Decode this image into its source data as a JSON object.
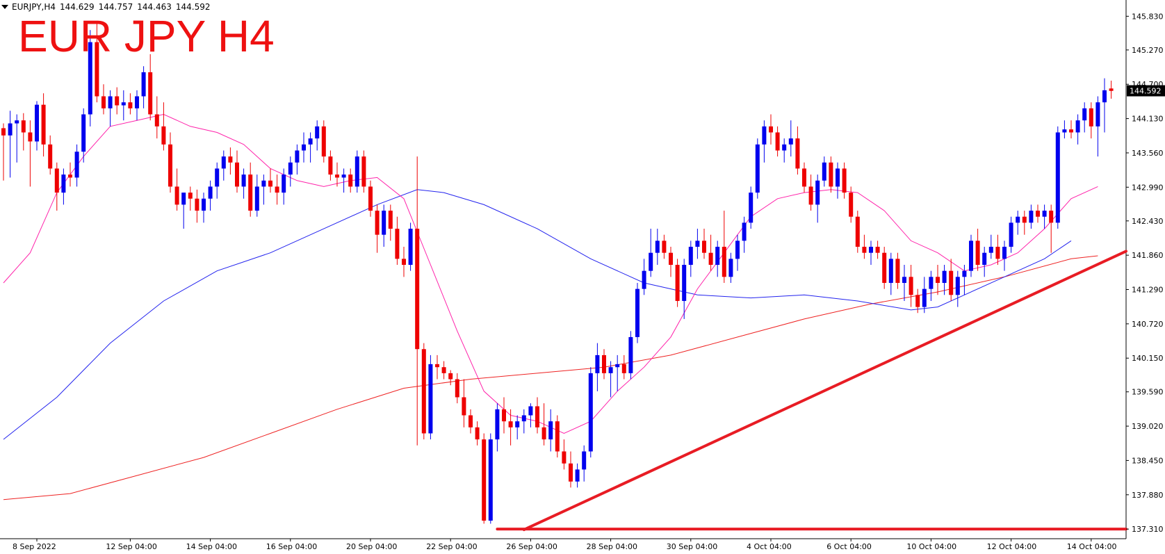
{
  "header": {
    "symbol": "EURJPY,H4",
    "open": "144.629",
    "high": "144.757",
    "low": "144.463",
    "close": "144.592"
  },
  "overlay_title": "EUR JPY H4",
  "colors": {
    "bull": "#0000ee",
    "bear": "#ee0000",
    "ma_fast": "#ff22aa",
    "ma_mid": "#2222ee",
    "ma_slow": "#ee2222",
    "trendline": "#e81c24",
    "price_tag_bg": "#000000",
    "price_tag_text": "#ffffff"
  },
  "chart_data": {
    "type": "candlestick",
    "symbol": "EURJPY",
    "timeframe": "H4",
    "ylim": [
      137.15,
      146.1
    ],
    "y_ticks": [
      145.83,
      145.27,
      144.7,
      144.13,
      143.56,
      142.99,
      142.43,
      141.86,
      141.29,
      140.72,
      140.15,
      139.59,
      139.02,
      138.45,
      137.88,
      137.31
    ],
    "y_tick_labels": [
      "145.830",
      "145.270",
      "144.700",
      "144.130",
      "143.560",
      "142.990",
      "142.430",
      "141.860",
      "141.290",
      "140.720",
      "140.150",
      "139.590",
      "139.020",
      "138.450",
      "137.880",
      "137.310"
    ],
    "x_ticks": [
      {
        "label": "8 Sep 2022",
        "bar": 5
      },
      {
        "label": "12 Sep 04:00",
        "bar": 19
      },
      {
        "label": "14 Sep 04:00",
        "bar": 31
      },
      {
        "label": "16 Sep 04:00",
        "bar": 43
      },
      {
        "label": "20 Sep 04:00",
        "bar": 55
      },
      {
        "label": "22 Sep 04:00",
        "bar": 67
      },
      {
        "label": "26 Sep 04:00",
        "bar": 79
      },
      {
        "label": "28 Sep 04:00",
        "bar": 91
      },
      {
        "label": "30 Sep 04:00",
        "bar": 103
      },
      {
        "label": "4 Oct 04:00",
        "bar": 115
      },
      {
        "label": "6 Oct 04:00",
        "bar": 127
      },
      {
        "label": "10 Oct 04:00",
        "bar": 139
      },
      {
        "label": "12 Oct 04:00",
        "bar": 151
      },
      {
        "label": "14 Oct 04:00",
        "bar": 163
      }
    ],
    "candles": [
      [
        143.97,
        144.05,
        143.1,
        143.85
      ],
      [
        143.85,
        144.26,
        143.15,
        144.05
      ],
      [
        144.05,
        144.2,
        143.4,
        144.1
      ],
      [
        144.1,
        144.22,
        143.6,
        143.9
      ],
      [
        143.9,
        144.1,
        143.0,
        143.75
      ],
      [
        143.75,
        144.42,
        143.6,
        144.36
      ],
      [
        144.36,
        144.55,
        143.5,
        143.7
      ],
      [
        143.7,
        143.85,
        143.2,
        143.3
      ],
      [
        143.3,
        143.4,
        142.6,
        142.9
      ],
      [
        142.9,
        143.3,
        142.7,
        143.2
      ],
      [
        143.2,
        143.4,
        143.0,
        143.15
      ],
      [
        143.15,
        143.7,
        143.0,
        143.58
      ],
      [
        143.58,
        144.3,
        143.4,
        144.2
      ],
      [
        144.2,
        145.6,
        144.0,
        145.4
      ],
      [
        145.4,
        145.72,
        144.4,
        144.5
      ],
      [
        144.5,
        144.7,
        144.2,
        144.3
      ],
      [
        144.3,
        144.6,
        144.0,
        144.5
      ],
      [
        144.5,
        144.65,
        144.2,
        144.35
      ],
      [
        144.35,
        144.6,
        144.1,
        144.4
      ],
      [
        144.4,
        144.55,
        144.2,
        144.3
      ],
      [
        144.3,
        144.6,
        144.1,
        144.5
      ],
      [
        144.5,
        145.0,
        144.3,
        144.9
      ],
      [
        144.9,
        145.2,
        144.1,
        144.2
      ],
      [
        144.2,
        144.5,
        143.8,
        144.0
      ],
      [
        144.0,
        144.4,
        143.6,
        143.7
      ],
      [
        143.7,
        143.9,
        142.9,
        143.0
      ],
      [
        143.0,
        143.3,
        142.6,
        142.7
      ],
      [
        142.7,
        142.9,
        142.3,
        142.9
      ],
      [
        142.9,
        143.0,
        142.6,
        142.8
      ],
      [
        142.8,
        142.95,
        142.4,
        142.6
      ],
      [
        142.6,
        142.9,
        142.4,
        142.8
      ],
      [
        142.8,
        143.1,
        142.6,
        143.0
      ],
      [
        143.0,
        143.4,
        142.8,
        143.3
      ],
      [
        143.3,
        143.6,
        143.1,
        143.5
      ],
      [
        143.5,
        143.65,
        143.2,
        143.4
      ],
      [
        143.4,
        143.6,
        142.9,
        143.0
      ],
      [
        143.0,
        143.3,
        142.8,
        143.2
      ],
      [
        143.2,
        143.4,
        142.5,
        142.6
      ],
      [
        142.6,
        143.2,
        142.5,
        143.0
      ],
      [
        143.0,
        143.2,
        142.7,
        143.1
      ],
      [
        143.1,
        143.3,
        142.9,
        143.0
      ],
      [
        143.0,
        143.2,
        142.7,
        142.9
      ],
      [
        142.9,
        143.3,
        142.7,
        143.2
      ],
      [
        143.2,
        143.5,
        143.0,
        143.4
      ],
      [
        143.4,
        143.7,
        143.2,
        143.6
      ],
      [
        143.6,
        143.9,
        143.4,
        143.7
      ],
      [
        143.7,
        143.9,
        143.4,
        143.8
      ],
      [
        143.8,
        144.1,
        143.6,
        144.0
      ],
      [
        144.0,
        144.1,
        143.4,
        143.5
      ],
      [
        143.5,
        143.6,
        143.1,
        143.2
      ],
      [
        143.2,
        143.4,
        143.0,
        143.15
      ],
      [
        143.15,
        143.3,
        142.9,
        143.2
      ],
      [
        143.2,
        143.3,
        142.9,
        143.0
      ],
      [
        143.0,
        143.6,
        142.9,
        143.5
      ],
      [
        143.5,
        143.6,
        142.9,
        143.0
      ],
      [
        143.0,
        143.1,
        142.5,
        142.6
      ],
      [
        142.6,
        142.7,
        141.9,
        142.2
      ],
      [
        142.2,
        142.7,
        142.0,
        142.6
      ],
      [
        142.6,
        142.7,
        142.1,
        142.3
      ],
      [
        142.3,
        142.5,
        141.7,
        141.8
      ],
      [
        141.8,
        142.0,
        141.5,
        141.7
      ],
      [
        141.7,
        142.4,
        141.6,
        142.3
      ],
      [
        142.3,
        143.5,
        138.7,
        140.3
      ],
      [
        140.3,
        140.4,
        138.8,
        138.9
      ],
      [
        138.9,
        140.2,
        138.8,
        140.05
      ],
      [
        140.05,
        140.2,
        139.8,
        140.0
      ],
      [
        140.0,
        140.1,
        139.8,
        139.9
      ],
      [
        139.9,
        139.95,
        139.7,
        139.8
      ],
      [
        139.8,
        139.9,
        139.4,
        139.5
      ],
      [
        139.5,
        139.8,
        139.0,
        139.2
      ],
      [
        139.2,
        139.3,
        138.9,
        139.0
      ],
      [
        139.0,
        139.1,
        138.7,
        138.8
      ],
      [
        138.8,
        138.9,
        137.4,
        137.45
      ],
      [
        137.45,
        138.9,
        137.4,
        138.8
      ],
      [
        138.8,
        139.4,
        138.6,
        139.3
      ],
      [
        139.3,
        139.5,
        138.9,
        139.1
      ],
      [
        139.1,
        139.3,
        138.7,
        139.0
      ],
      [
        139.0,
        139.2,
        138.8,
        139.1
      ],
      [
        139.1,
        139.3,
        138.9,
        139.2
      ],
      [
        139.2,
        139.4,
        139.0,
        139.35
      ],
      [
        139.35,
        139.5,
        138.9,
        139.0
      ],
      [
        139.0,
        139.4,
        138.7,
        138.8
      ],
      [
        138.8,
        139.3,
        138.6,
        139.1
      ],
      [
        139.1,
        139.2,
        138.5,
        138.6
      ],
      [
        138.6,
        138.8,
        138.3,
        138.4
      ],
      [
        138.4,
        138.6,
        138.0,
        138.1
      ],
      [
        138.1,
        138.4,
        138.0,
        138.3
      ],
      [
        138.3,
        138.7,
        138.1,
        138.6
      ],
      [
        138.6,
        140.0,
        138.5,
        139.9
      ],
      [
        139.9,
        140.4,
        139.6,
        140.2
      ],
      [
        140.2,
        140.3,
        139.8,
        139.9
      ],
      [
        139.9,
        140.1,
        139.5,
        140.0
      ],
      [
        140.0,
        140.2,
        139.6,
        140.05
      ],
      [
        140.05,
        140.2,
        139.8,
        139.9
      ],
      [
        139.9,
        140.6,
        139.8,
        140.5
      ],
      [
        140.5,
        141.4,
        140.4,
        141.3
      ],
      [
        141.3,
        141.8,
        141.2,
        141.6
      ],
      [
        141.6,
        142.3,
        141.5,
        141.9
      ],
      [
        141.9,
        142.3,
        141.7,
        142.1
      ],
      [
        142.1,
        142.2,
        141.8,
        141.9
      ],
      [
        141.9,
        142.0,
        141.5,
        141.7
      ],
      [
        141.7,
        141.8,
        141.0,
        141.1
      ],
      [
        141.1,
        141.8,
        140.8,
        141.7
      ],
      [
        141.7,
        142.1,
        141.5,
        142.0
      ],
      [
        142.0,
        142.3,
        141.8,
        142.1
      ],
      [
        142.1,
        142.3,
        141.8,
        141.9
      ],
      [
        141.9,
        142.2,
        141.6,
        141.7
      ],
      [
        141.7,
        142.1,
        141.5,
        142.0
      ],
      [
        142.0,
        142.6,
        141.4,
        141.5
      ],
      [
        141.5,
        141.9,
        141.4,
        141.8
      ],
      [
        141.8,
        142.2,
        141.6,
        142.1
      ],
      [
        142.1,
        142.5,
        141.9,
        142.4
      ],
      [
        142.4,
        143.0,
        142.3,
        142.9
      ],
      [
        142.9,
        143.8,
        142.8,
        143.7
      ],
      [
        143.7,
        144.1,
        143.4,
        144.0
      ],
      [
        144.0,
        144.2,
        143.7,
        143.9
      ],
      [
        143.9,
        144.0,
        143.5,
        143.6
      ],
      [
        143.6,
        143.8,
        143.4,
        143.7
      ],
      [
        143.7,
        144.1,
        143.5,
        143.8
      ],
      [
        143.8,
        144.0,
        143.2,
        143.3
      ],
      [
        143.3,
        143.4,
        142.9,
        143.0
      ],
      [
        143.0,
        143.2,
        142.6,
        142.7
      ],
      [
        142.7,
        143.2,
        142.4,
        143.1
      ],
      [
        143.1,
        143.5,
        143.0,
        143.4
      ],
      [
        143.4,
        143.5,
        142.9,
        143.0
      ],
      [
        143.0,
        143.4,
        142.8,
        143.3
      ],
      [
        143.3,
        143.4,
        142.8,
        142.9
      ],
      [
        142.9,
        143.0,
        142.4,
        142.5
      ],
      [
        142.5,
        142.6,
        141.9,
        142.0
      ],
      [
        142.0,
        142.2,
        141.8,
        141.9
      ],
      [
        141.9,
        142.1,
        141.7,
        142.0
      ],
      [
        142.0,
        142.1,
        141.8,
        141.9
      ],
      [
        141.9,
        142.0,
        141.3,
        141.4
      ],
      [
        141.4,
        141.9,
        141.2,
        141.8
      ],
      [
        141.8,
        141.9,
        141.3,
        141.4
      ],
      [
        141.4,
        141.7,
        141.1,
        141.5
      ],
      [
        141.5,
        141.7,
        141.0,
        141.2
      ],
      [
        141.2,
        141.3,
        140.9,
        141.0
      ],
      [
        141.0,
        141.5,
        140.9,
        141.3
      ],
      [
        141.3,
        141.6,
        141.1,
        141.5
      ],
      [
        141.5,
        141.7,
        141.2,
        141.4
      ],
      [
        141.4,
        141.7,
        141.2,
        141.6
      ],
      [
        141.6,
        141.8,
        141.1,
        141.2
      ],
      [
        141.2,
        141.6,
        141.0,
        141.5
      ],
      [
        141.5,
        141.7,
        141.2,
        141.6
      ],
      [
        141.6,
        142.2,
        141.5,
        142.1
      ],
      [
        142.1,
        142.3,
        141.6,
        141.7
      ],
      [
        141.7,
        142.0,
        141.5,
        141.9
      ],
      [
        141.9,
        142.2,
        141.8,
        142.0
      ],
      [
        142.0,
        142.2,
        141.7,
        141.8
      ],
      [
        141.8,
        142.1,
        141.6,
        142.0
      ],
      [
        142.0,
        142.5,
        141.9,
        142.4
      ],
      [
        142.4,
        142.6,
        142.2,
        142.5
      ],
      [
        142.5,
        142.6,
        142.2,
        142.4
      ],
      [
        142.4,
        142.7,
        142.3,
        142.6
      ],
      [
        142.6,
        142.7,
        142.4,
        142.5
      ],
      [
        142.5,
        142.7,
        142.3,
        142.6
      ],
      [
        142.6,
        142.7,
        141.9,
        142.4
      ],
      [
        142.4,
        144.0,
        142.3,
        143.9
      ],
      [
        143.9,
        144.1,
        143.8,
        143.95
      ],
      [
        143.95,
        144.1,
        143.8,
        143.9
      ],
      [
        143.9,
        144.2,
        143.7,
        144.1
      ],
      [
        144.1,
        144.4,
        143.9,
        144.3
      ],
      [
        144.3,
        144.4,
        143.8,
        144.0
      ],
      [
        144.0,
        144.5,
        143.5,
        144.4
      ],
      [
        144.4,
        144.8,
        143.9,
        144.6
      ],
      [
        144.63,
        144.76,
        144.46,
        144.59
      ]
    ],
    "ma_fast": [
      [
        0,
        141.4
      ],
      [
        4,
        141.9
      ],
      [
        8,
        142.9
      ],
      [
        12,
        143.5
      ],
      [
        16,
        144.0
      ],
      [
        20,
        144.1
      ],
      [
        24,
        144.2
      ],
      [
        28,
        144.0
      ],
      [
        32,
        143.9
      ],
      [
        36,
        143.7
      ],
      [
        40,
        143.3
      ],
      [
        44,
        143.1
      ],
      [
        48,
        143.0
      ],
      [
        52,
        143.1
      ],
      [
        56,
        143.15
      ],
      [
        60,
        142.8
      ],
      [
        64,
        141.7
      ],
      [
        68,
        140.6
      ],
      [
        72,
        139.6
      ],
      [
        76,
        139.2
      ],
      [
        80,
        139.1
      ],
      [
        84,
        138.9
      ],
      [
        88,
        139.1
      ],
      [
        92,
        139.6
      ],
      [
        96,
        140.0
      ],
      [
        100,
        140.5
      ],
      [
        104,
        141.3
      ],
      [
        108,
        141.9
      ],
      [
        112,
        142.5
      ],
      [
        116,
        142.8
      ],
      [
        120,
        142.9
      ],
      [
        124,
        142.95
      ],
      [
        128,
        142.9
      ],
      [
        132,
        142.6
      ],
      [
        136,
        142.1
      ],
      [
        140,
        141.9
      ],
      [
        144,
        141.6
      ],
      [
        148,
        141.7
      ],
      [
        152,
        141.9
      ],
      [
        156,
        142.3
      ],
      [
        160,
        142.8
      ],
      [
        164,
        143.0
      ]
    ],
    "ma_mid": [
      [
        0,
        138.8
      ],
      [
        8,
        139.5
      ],
      [
        16,
        140.4
      ],
      [
        24,
        141.1
      ],
      [
        32,
        141.6
      ],
      [
        40,
        141.9
      ],
      [
        48,
        142.3
      ],
      [
        56,
        142.7
      ],
      [
        62,
        142.95
      ],
      [
        66,
        142.9
      ],
      [
        72,
        142.7
      ],
      [
        80,
        142.3
      ],
      [
        88,
        141.8
      ],
      [
        96,
        141.4
      ],
      [
        104,
        141.2
      ],
      [
        112,
        141.15
      ],
      [
        120,
        141.2
      ],
      [
        128,
        141.1
      ],
      [
        136,
        140.95
      ],
      [
        140,
        141.0
      ],
      [
        144,
        141.2
      ],
      [
        150,
        141.5
      ],
      [
        156,
        141.8
      ],
      [
        160,
        142.1
      ]
    ],
    "ma_slow": [
      [
        0,
        137.8
      ],
      [
        10,
        137.9
      ],
      [
        20,
        138.2
      ],
      [
        30,
        138.5
      ],
      [
        40,
        138.9
      ],
      [
        50,
        139.3
      ],
      [
        60,
        139.65
      ],
      [
        70,
        139.8
      ],
      [
        80,
        139.9
      ],
      [
        90,
        140.0
      ],
      [
        100,
        140.2
      ],
      [
        110,
        140.5
      ],
      [
        120,
        140.8
      ],
      [
        130,
        141.05
      ],
      [
        140,
        141.25
      ],
      [
        150,
        141.5
      ],
      [
        160,
        141.8
      ],
      [
        164,
        141.85
      ]
    ],
    "trendlines": [
      {
        "kind": "support-diagonal",
        "from": [
          78,
          137.3
        ],
        "to": [
          220,
          144.58
        ]
      },
      {
        "kind": "horizontal",
        "from": [
          74,
          137.31
        ],
        "to": [
          220,
          137.31
        ]
      }
    ],
    "last_price": 144.592,
    "last_price_label": "144.592",
    "grid": false
  }
}
